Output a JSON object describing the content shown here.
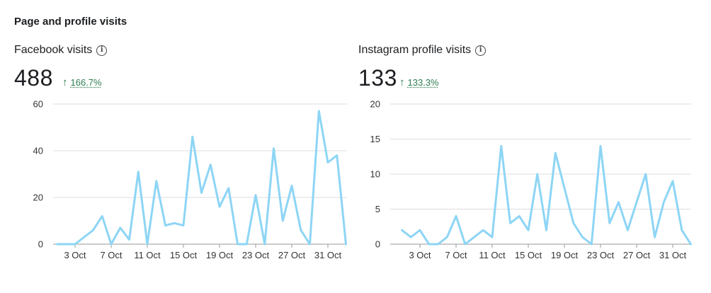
{
  "section_title": "Page and profile visits",
  "panels": {
    "facebook": {
      "label": "Facebook visits",
      "value": "488",
      "change": "166.7%",
      "change_direction": "up",
      "info_icon": "info-icon"
    },
    "instagram": {
      "label": "Instagram profile visits",
      "value": "133",
      "change": "133.3%",
      "change_direction": "up",
      "info_icon": "info-icon"
    }
  },
  "colors": {
    "line": "#8dd5f5",
    "grid": "#dddddd",
    "axis": "#9a9a9a",
    "positive": "#2e7d4f"
  },
  "chart_data": [
    {
      "type": "line",
      "title": "Facebook visits",
      "x_ticks": [
        "3 Oct",
        "7 Oct",
        "11 Oct",
        "15 Oct",
        "19 Oct",
        "23 Oct",
        "27 Oct",
        "31 Oct"
      ],
      "y_ticks": [
        0,
        20,
        40,
        60
      ],
      "ylim": [
        0,
        60
      ],
      "grid": true,
      "values": [
        0,
        0,
        0,
        3,
        6,
        12,
        0,
        7,
        2,
        31,
        0,
        27,
        8,
        9,
        8,
        46,
        22,
        34,
        16,
        24,
        0,
        0,
        21,
        0,
        41,
        10,
        25,
        6,
        0,
        57,
        35,
        38,
        0
      ]
    },
    {
      "type": "line",
      "title": "Instagram profile visits",
      "x_ticks": [
        "3 Oct",
        "7 Oct",
        "11 Oct",
        "15 Oct",
        "19 Oct",
        "23 Oct",
        "27 Oct",
        "31 Oct"
      ],
      "y_ticks": [
        0,
        5,
        10,
        15,
        20
      ],
      "ylim": [
        0,
        20
      ],
      "grid": true,
      "values": [
        2,
        1,
        2,
        0,
        0,
        1,
        4,
        0,
        1,
        2,
        1,
        14,
        3,
        4,
        2,
        10,
        2,
        13,
        8,
        3,
        1,
        0,
        14,
        3,
        6,
        2,
        6,
        10,
        1,
        6,
        9,
        2,
        0
      ]
    }
  ]
}
